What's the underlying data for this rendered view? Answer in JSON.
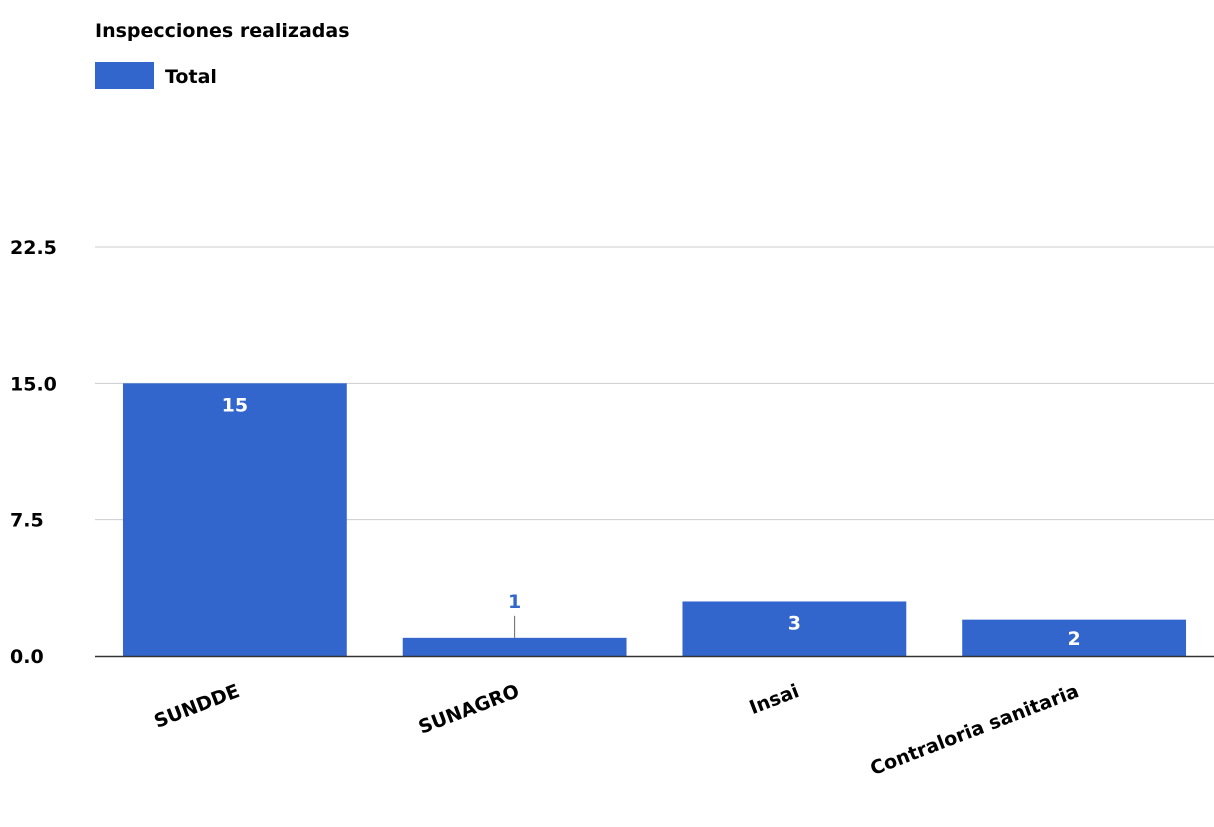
{
  "chart_data": {
    "type": "bar",
    "title": "Inspecciones realizadas",
    "xlabel": "",
    "ylabel": "",
    "categories": [
      "SUNDDE",
      "SUNAGRO",
      "Insai",
      "Contraloria sanitaria"
    ],
    "series": [
      {
        "name": "Total",
        "values": [
          15,
          1,
          3,
          2
        ],
        "data_labels": [
          "15",
          "1",
          "3",
          "2"
        ]
      }
    ],
    "ylim": [
      0,
      22.5
    ],
    "yticks": [
      "0.0",
      "7.5",
      "15.0",
      "22.5"
    ],
    "ytick_values": [
      0,
      7.5,
      15,
      22.5
    ],
    "grid": true,
    "legend": "top-left",
    "colors": {
      "bar": "#3366cc",
      "grid": "#cccccc",
      "axis": "#333333",
      "label_outside": "#3366cc",
      "label_inside": "#ffffff"
    }
  }
}
